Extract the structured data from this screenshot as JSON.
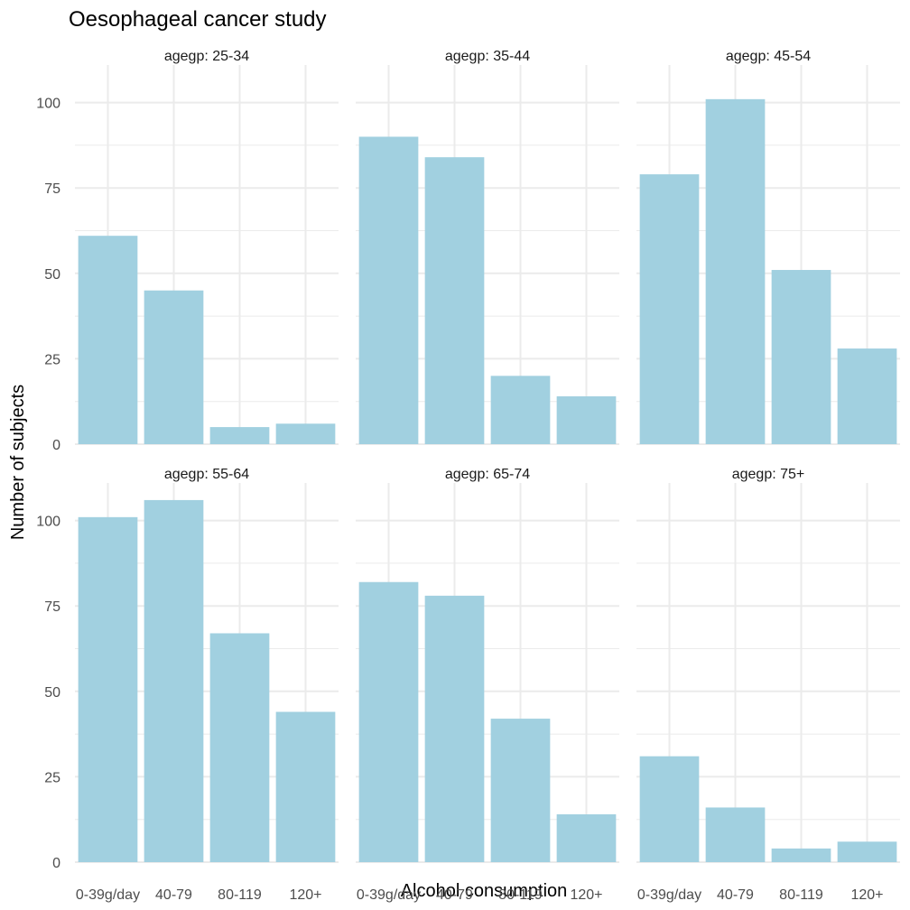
{
  "chart_data": {
    "type": "bar",
    "title": "Oesophageal cancer study",
    "xlabel": "Alcohol consumption",
    "ylabel": "Number of subjects",
    "categories": [
      "0-39g/day",
      "40-79",
      "80-119",
      "120+"
    ],
    "ylim": [
      0,
      111
    ],
    "yticks": [
      0,
      25,
      50,
      75,
      100
    ],
    "grid": true,
    "bar_color": "#A1D0E0",
    "facets": [
      {
        "label": "agegp: 25-34",
        "values": [
          61,
          45,
          5,
          6
        ]
      },
      {
        "label": "agegp: 35-44",
        "values": [
          90,
          84,
          20,
          14
        ]
      },
      {
        "label": "agegp: 45-54",
        "values": [
          79,
          101,
          51,
          28
        ]
      },
      {
        "label": "agegp: 55-64",
        "values": [
          101,
          106,
          67,
          44
        ]
      },
      {
        "label": "agegp: 65-74",
        "values": [
          82,
          78,
          42,
          14
        ]
      },
      {
        "label": "agegp: 75+",
        "values": [
          31,
          16,
          4,
          6
        ]
      }
    ]
  }
}
